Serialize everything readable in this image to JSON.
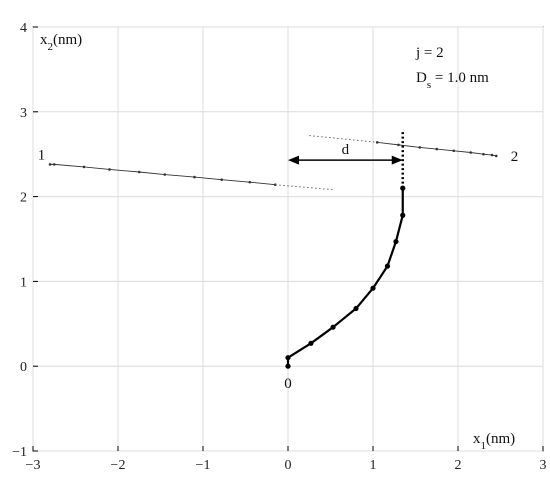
{
  "chart_data": {
    "type": "line",
    "xlabel": "x1(nm)",
    "ylabel": "x2(nm)",
    "xlim": [
      -3,
      3
    ],
    "ylim": [
      -1,
      4
    ],
    "xticks": [
      -3,
      -2,
      -1,
      0,
      1,
      2,
      3
    ],
    "yticks": [
      -1,
      0,
      1,
      2,
      3,
      4
    ],
    "xtick_labels": [
      "−3",
      "−2",
      "−1",
      "0",
      "1",
      "2",
      "3"
    ],
    "ytick_labels": [
      "−1",
      "0",
      "1",
      "2",
      "3",
      "4"
    ],
    "grid": true,
    "annotations": {
      "params_line1": "j = 2",
      "params_line2": "Ds = 1.0 nm",
      "d_label": "d",
      "point_label_0": "0",
      "point_label_1": "1",
      "point_label_2": "2"
    },
    "series": [
      {
        "style": "thick-solid-with-markers",
        "x": [
          0.0,
          0.0,
          0.27,
          0.53,
          0.8,
          1.0,
          1.17,
          1.27,
          1.35,
          1.35
        ],
        "y": [
          0.0,
          0.1,
          0.27,
          0.46,
          0.68,
          0.92,
          1.18,
          1.47,
          1.78,
          2.1
        ]
      },
      {
        "style": "thin-solid-with-markers",
        "x": [
          -2.8,
          -2.75,
          -2.4,
          -2.1,
          -1.75,
          -1.45,
          -1.1,
          -0.78,
          -0.45,
          -0.15
        ],
        "y": [
          2.38,
          2.38,
          2.35,
          2.32,
          2.29,
          2.26,
          2.23,
          2.2,
          2.17,
          2.14
        ]
      },
      {
        "style": "thin-dotted",
        "x": [
          -0.15,
          0.55
        ],
        "y": [
          2.14,
          2.08
        ]
      },
      {
        "style": "thin-dotted",
        "x": [
          0.25,
          1.05
        ],
        "y": [
          2.72,
          2.64
        ]
      },
      {
        "style": "thin-solid-with-markers",
        "x": [
          1.05,
          1.3,
          1.55,
          1.75,
          1.95,
          2.15,
          2.3,
          2.4,
          2.45
        ],
        "y": [
          2.64,
          2.61,
          2.58,
          2.56,
          2.54,
          2.52,
          2.5,
          2.49,
          2.48
        ]
      },
      {
        "style": "thick-dotted-vertical",
        "x": [
          1.35,
          1.35
        ],
        "y": [
          2.1,
          2.77
        ]
      }
    ],
    "d_arrow": {
      "x_start": 0.0,
      "x_end": 1.35,
      "y": 2.43
    }
  }
}
